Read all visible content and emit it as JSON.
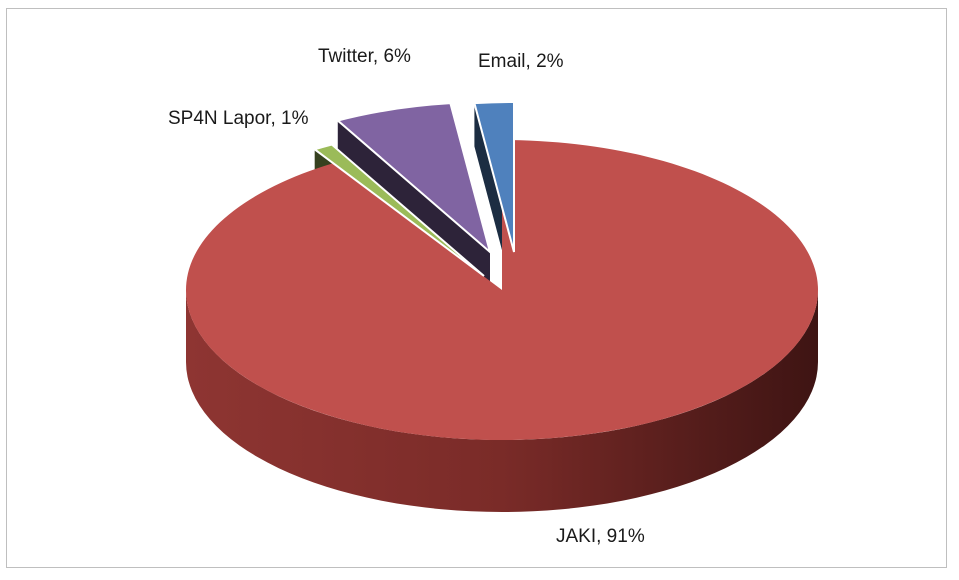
{
  "chart_data": {
    "type": "pie",
    "style": "3d-exploded",
    "title": "",
    "slices": [
      {
        "name": "JAKI",
        "value": 91,
        "label": "JAKI, 91%",
        "color": "#c0504d"
      },
      {
        "name": "SP4N Lapor",
        "value": 1,
        "label": "SP4N Lapor, 1%",
        "color": "#9bbb59"
      },
      {
        "name": "Twitter",
        "value": 6,
        "label": "Twitter, 6%",
        "color": "#8064a2"
      },
      {
        "name": "Email",
        "value": 2,
        "label": "Email, 2%",
        "color": "#4f81bd"
      }
    ],
    "legend": "none"
  }
}
